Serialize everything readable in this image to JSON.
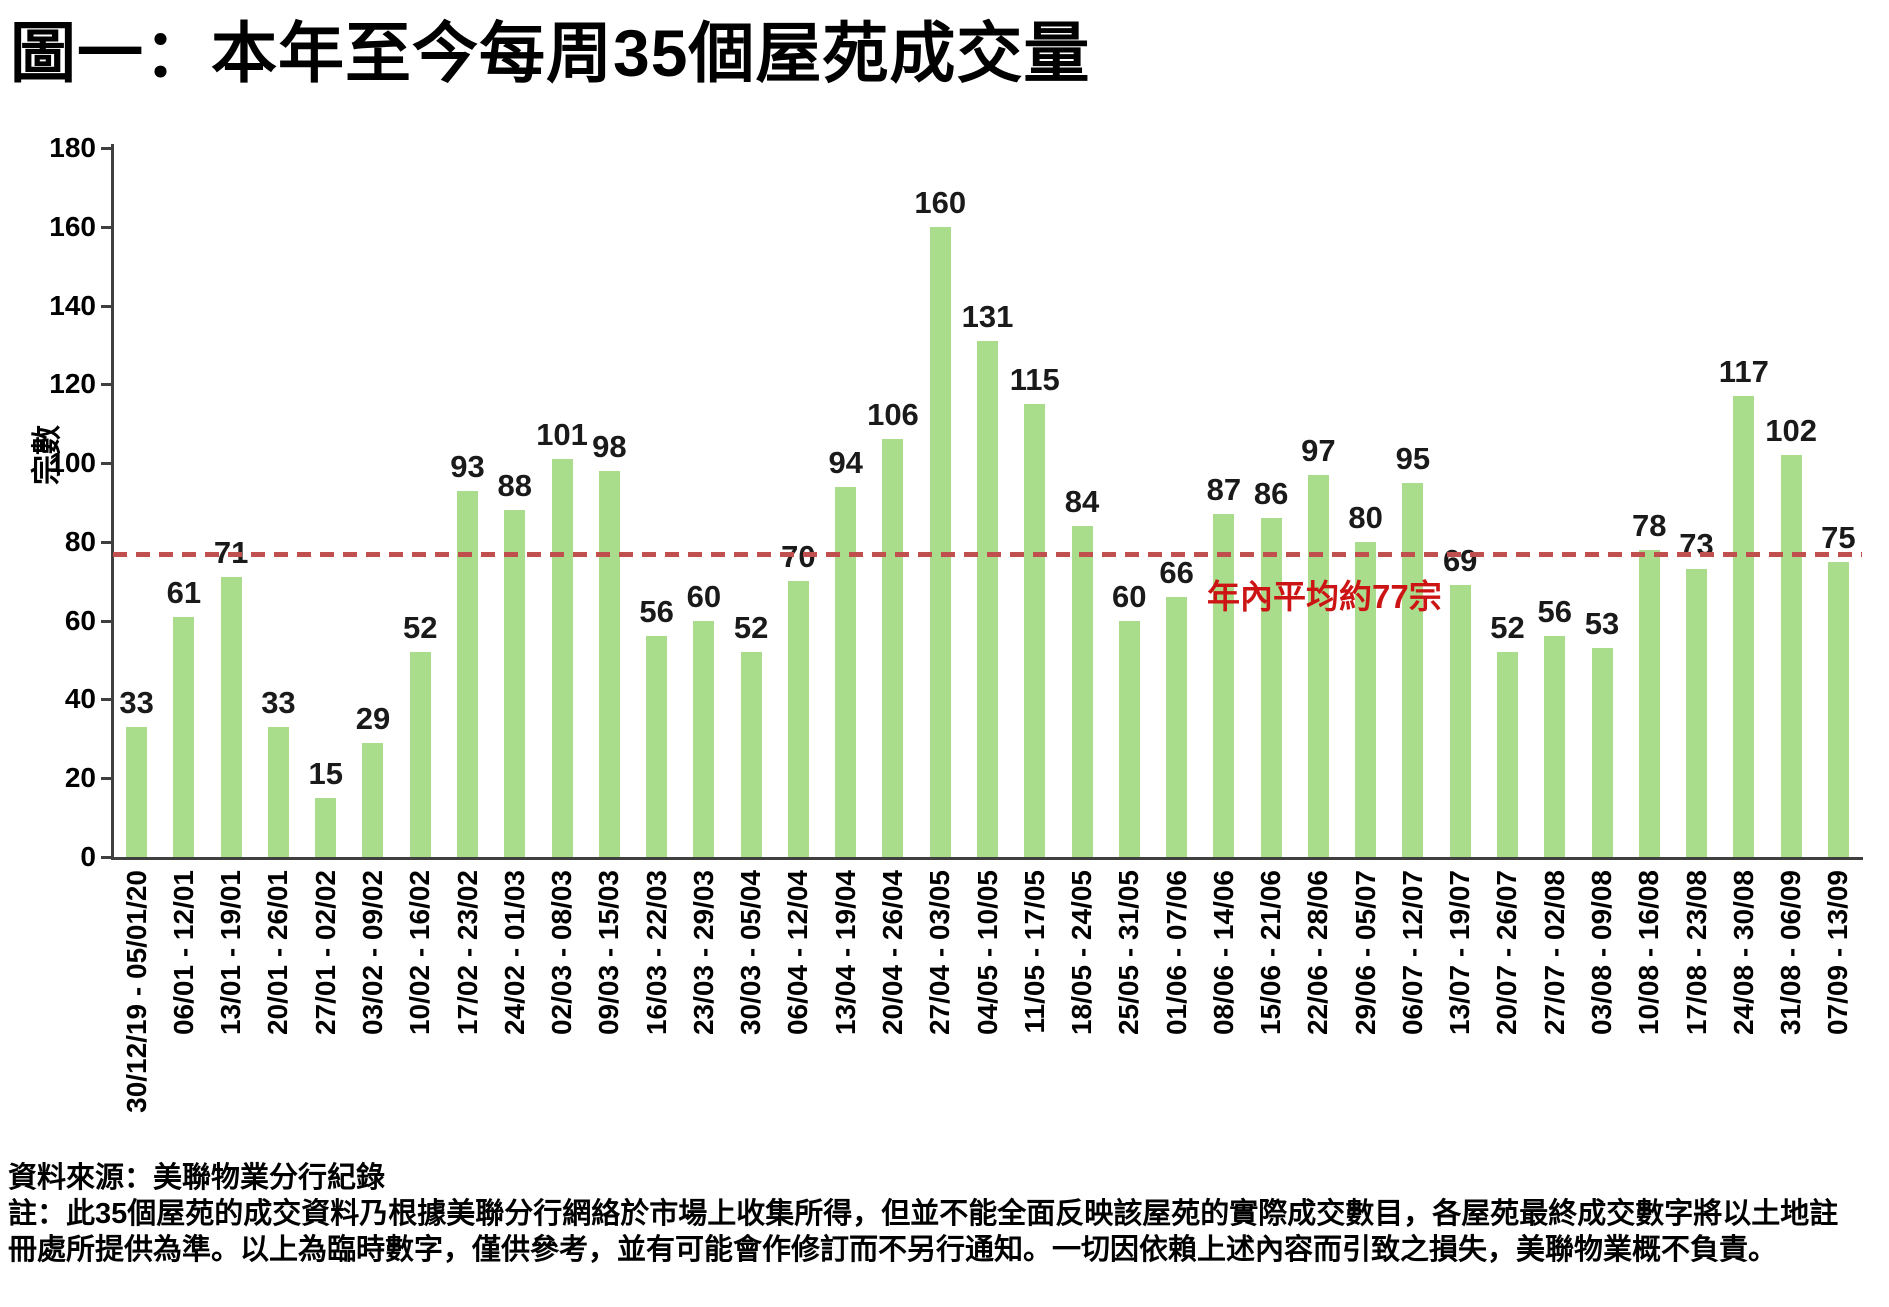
{
  "title": "圖一：本年至今每周35個屋苑成交量",
  "chart_data": {
    "type": "bar",
    "title": "圖一：本年至今每周35個屋苑成交量",
    "categories": [
      "30/12/19 - 05/01/20",
      "06/01 - 12/01",
      "13/01 - 19/01",
      "20/01 - 26/01",
      "27/01 - 02/02",
      "03/02 - 09/02",
      "10/02 - 16/02",
      "17/02 - 23/02",
      "24/02 - 01/03",
      "02/03 - 08/03",
      "09/03 - 15/03",
      "16/03 - 22/03",
      "23/03 - 29/03",
      "30/03 - 05/04",
      "06/04 - 12/04",
      "13/04 - 19/04",
      "20/04 - 26/04",
      "27/04 - 03/05",
      "04/05 - 10/05",
      "11/05 - 17/05",
      "18/05 - 24/05",
      "25/05 - 31/05",
      "01/06 - 07/06",
      "08/06 - 14/06",
      "15/06 - 21/06",
      "22/06 - 28/06",
      "29/06 - 05/07",
      "06/07 - 12/07",
      "13/07 - 19/07",
      "20/07 - 26/07",
      "27/07 - 02/08",
      "03/08 - 09/08",
      "10/08 - 16/08",
      "17/08 - 23/08",
      "24/08 - 30/08",
      "31/08 - 06/09",
      "07/09 - 13/09"
    ],
    "values": [
      33,
      61,
      71,
      33,
      15,
      29,
      52,
      93,
      88,
      101,
      98,
      56,
      60,
      52,
      70,
      94,
      106,
      160,
      131,
      115,
      84,
      60,
      66,
      87,
      86,
      97,
      80,
      95,
      69,
      52,
      56,
      53,
      78,
      73,
      117,
      102,
      75
    ],
    "xlabel": "",
    "ylabel": "宗數",
    "ylim": [
      0,
      180
    ],
    "yticks": [
      0,
      20,
      40,
      60,
      80,
      100,
      120,
      140,
      160,
      180
    ],
    "grid": "off",
    "legend": "none",
    "bar_color": "#a9dc8b",
    "average_line": {
      "value": 77,
      "label": "年內平均約77宗",
      "line_color": "#c0504d",
      "label_color": "#cc1414"
    }
  },
  "footer": {
    "source": "資料來源：美聯物業分行紀錄",
    "note_line1": "註：此35個屋苑的成交資料乃根據美聯分行網絡於市場上收集所得，但並不能全面反映該屋苑的實際成交數目，各屋苑最終成交數字將以土地註",
    "note_line2": "冊處所提供為準。以上為臨時數字，僅供參考，並有可能會作修訂而不另行通知。一切因依賴上述內容而引致之損失，美聯物業概不負責。"
  }
}
